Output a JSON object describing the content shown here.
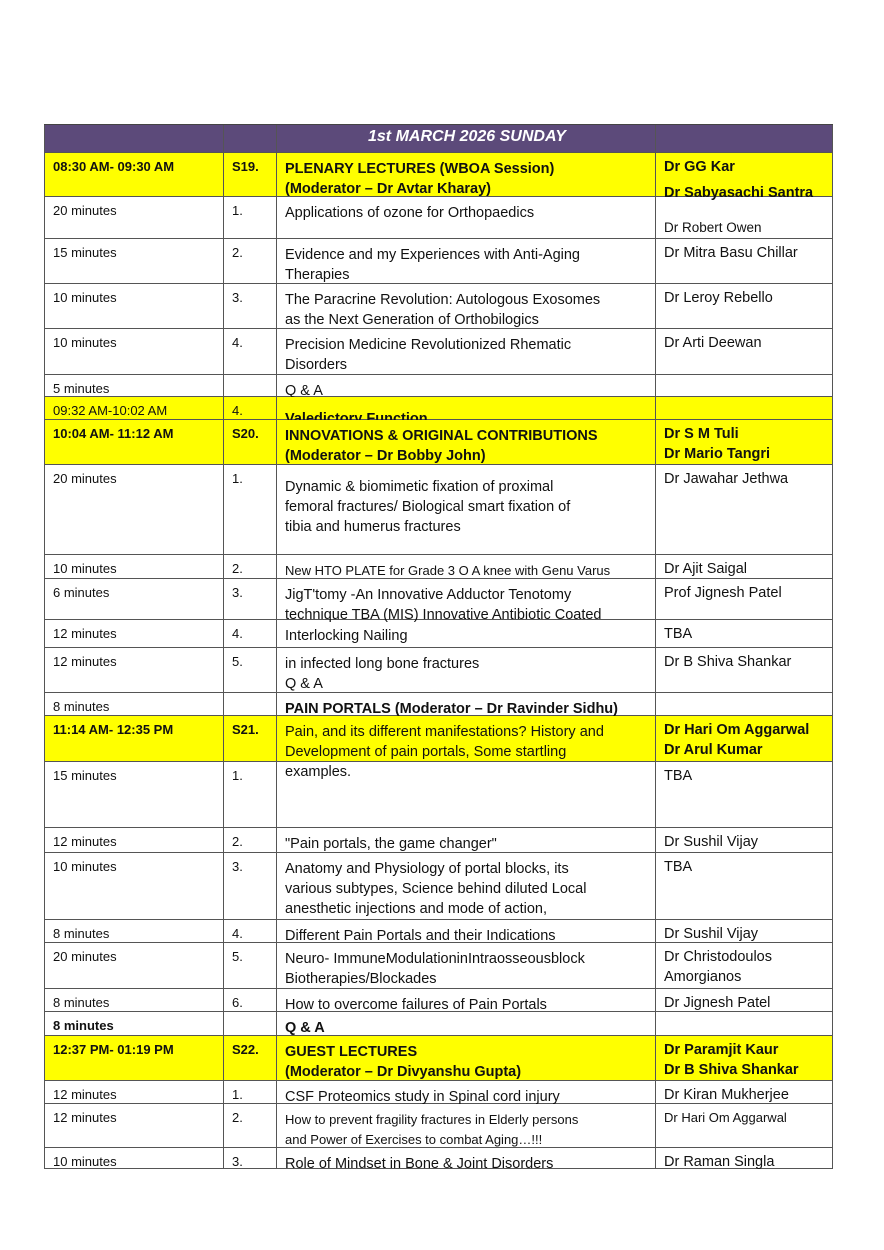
{
  "header": {
    "title": "1st MARCH 2026 SUNDAY"
  },
  "colors": {
    "header_bg": "#5c4a7a",
    "session_highlight": "#ffff00"
  },
  "rows": [
    {
      "time": "08:30 AM- 09:30 AM",
      "no": "S19.",
      "topic": [
        "PLENARY LECTURES (WBOA Session)",
        "(Moderator – Dr Avtar Kharay)"
      ],
      "speakers": [
        "Dr GG Kar",
        "Dr Sabyasachi Santra"
      ],
      "yellow": true,
      "bold": true
    },
    {
      "time": "20 minutes",
      "no": "1.",
      "topic": [
        "Applications of ozone for Orthopaedics"
      ],
      "speakers": [
        "",
        "Dr Robert Owen"
      ]
    },
    {
      "time": "15 minutes",
      "no": "2.",
      "topic": [
        "Evidence and my Experiences with Anti-Aging",
        "Therapies"
      ],
      "speakers": [
        "Dr Mitra Basu Chillar"
      ]
    },
    {
      "time": "10 minutes",
      "no": "3.",
      "topic": [
        "The Paracrine Revolution: Autologous Exosomes",
        "as the Next Generation of Orthobilogics"
      ],
      "speakers": [
        "Dr Leroy Rebello"
      ]
    },
    {
      "time": "10 minutes",
      "no": "4.",
      "topic": [
        "Precision Medicine Revolutionized Rhematic",
        "Disorders"
      ],
      "speakers": [
        "Dr Arti Deewan"
      ]
    },
    {
      "time": "5 minutes",
      "no": "",
      "topic": [
        "Q & A"
      ],
      "speakers": []
    },
    {
      "time": "09:32 AM-10:02 AM",
      "no": "4.",
      "topic": [
        "Valedictory Function"
      ],
      "speakers": [],
      "yellow": true,
      "topicBold": true
    },
    {
      "time": "10:04 AM- 11:12 AM",
      "no": "S20.",
      "topic": [
        "INNOVATIONS & ORIGINAL CONTRIBUTIONS",
        "(Moderator – Dr Bobby John)"
      ],
      "speakers": [
        "Dr S M Tuli",
        "Dr Mario Tangri"
      ],
      "yellow": true,
      "bold": true
    },
    {
      "time": "20 minutes",
      "no": "1.",
      "topic": [
        "Dynamic & biomimetic fixation of proximal",
        "femoral fractures/ Biological smart fixation of",
        "tibia and humerus fractures"
      ],
      "speakers": [
        "Dr Jawahar Jethwa"
      ]
    },
    {
      "time": "10 minutes",
      "no": "2.",
      "topic": [
        "New HTO PLATE for Grade 3 O A knee with Genu Varus"
      ],
      "speakers": [
        "Dr Ajit Saigal"
      ]
    },
    {
      "time": "6 minutes",
      "no": "3.",
      "topic": [
        "JigT'tomy  -An  Innovative  Adductor  Tenotomy",
        "technique TBA (MIS) Innovative Antibiotic Coated"
      ],
      "speakers": [
        "Prof Jignesh Patel"
      ]
    },
    {
      "time": "12 minutes",
      "no": "4.",
      "topic": [
        "Interlocking Nailing"
      ],
      "speakers": [
        "TBA"
      ]
    },
    {
      "time": "12 minutes",
      "no": "5.",
      "topic": [
        "in infected long bone fractures",
        "Q & A"
      ],
      "speakers": [
        "Dr B Shiva Shankar"
      ]
    },
    {
      "time": "8 minutes",
      "no": "",
      "topic": [
        "PAIN PORTALS (Moderator – Dr Ravinder Sidhu)"
      ],
      "speakers": [],
      "topicBold": true
    },
    {
      "time": "11:14 AM- 12:35 PM",
      "no": "S21.",
      "topic": [
        "Pain, and its different manifestations? History and",
        "Development of pain portals, Some startling",
        "examples."
      ],
      "speakers": [
        "Dr Hari Om Aggarwal",
        "Dr Arul Kumar"
      ],
      "yellow": true,
      "bold": true,
      "topicNormal": true
    },
    {
      "time": "15 minutes",
      "no": "1.",
      "topic": [],
      "speakers": [
        "TBA"
      ]
    },
    {
      "time": "12 minutes",
      "no": "2.",
      "topic": [
        " \"Pain portals, the game changer\""
      ],
      "speakers": [
        "Dr Sushil Vijay"
      ]
    },
    {
      "time": "10 minutes",
      "no": "3.",
      "topic": [
        "Anatomy and Physiology of portal blocks, its",
        "various subtypes, Science behind diluted Local",
        "anesthetic injections and mode of action,"
      ],
      "speakers": [
        "TBA"
      ]
    },
    {
      "time": "8 minutes",
      "no": "4.",
      "topic": [
        "Different Pain Portals and their Indications"
      ],
      "speakers": [
        "Dr Sushil Vijay"
      ]
    },
    {
      "time": "20 minutes",
      "no": "5.",
      "topic": [
        "Neuro- ImmuneModulationinIntraosseousblock",
        "Biotherapies/Blockades"
      ],
      "speakers": [
        "Dr Christodoulos",
        "Amorgianos"
      ]
    },
    {
      "time": "8 minutes",
      "no": "6.",
      "topic": [
        "How to overcome failures of Pain Portals"
      ],
      "speakers": [
        "Dr Jignesh Patel"
      ]
    },
    {
      "time": "8 minutes",
      "no": "",
      "topic": [
        "Q & A"
      ],
      "speakers": [],
      "bold": true
    },
    {
      "time": "12:37 PM- 01:19 PM",
      "no": "S22.",
      "topic": [
        "GUEST LECTURES",
        "(Moderator – Dr Divyanshu Gupta)"
      ],
      "speakers": [
        "Dr Paramjit Kaur",
        "Dr B Shiva Shankar"
      ],
      "yellow": true,
      "bold": true
    },
    {
      "time": "12 minutes",
      "no": "1.",
      "topic": [
        "CSF Proteomics study in Spinal cord injury"
      ],
      "speakers": [
        "Dr Kiran Mukherjee"
      ]
    },
    {
      "time": "12 minutes",
      "no": "2.",
      "topic": [
        "How to prevent fragility fractures in Elderly persons",
        "and Power of Exercises to combat Aging…!!!"
      ],
      "speakers": [
        "Dr Hari Om Aggarwal"
      ]
    },
    {
      "time": "10 minutes",
      "no": "3.",
      "topic": [
        "Role of Mindset in Bone & Joint Disorders"
      ],
      "speakers": [
        "Dr Raman Singla"
      ]
    }
  ]
}
